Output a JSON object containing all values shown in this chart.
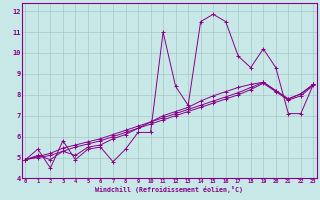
{
  "bg_color": "#c8e8e8",
  "grid_color": "#a8c8c8",
  "line_color": "#880088",
  "xlim": [
    -0.3,
    23.3
  ],
  "ylim": [
    4,
    12.4
  ],
  "xticks": [
    0,
    1,
    2,
    3,
    4,
    5,
    6,
    7,
    8,
    9,
    10,
    11,
    12,
    13,
    14,
    15,
    16,
    17,
    18,
    19,
    20,
    21,
    22,
    23
  ],
  "yticks": [
    4,
    5,
    6,
    7,
    8,
    9,
    10,
    11,
    12
  ],
  "xlabel": "Windchill (Refroidissement éolien,°C)",
  "series1_x": [
    0,
    1,
    2,
    3,
    4,
    5,
    6,
    7,
    8,
    9,
    10,
    11,
    12,
    13,
    14,
    15,
    16,
    17,
    18,
    19,
    20,
    21,
    22,
    23
  ],
  "series1_y": [
    4.9,
    5.4,
    4.5,
    5.8,
    4.9,
    5.4,
    5.5,
    4.8,
    5.4,
    6.2,
    6.2,
    11.0,
    8.4,
    7.5,
    11.5,
    11.85,
    11.5,
    9.85,
    9.3,
    10.2,
    9.3,
    7.1,
    7.1,
    8.5
  ],
  "series2_x": [
    0,
    1,
    2,
    3,
    4,
    5,
    6,
    7,
    8,
    9,
    10,
    11,
    12,
    13,
    14,
    15,
    16,
    17,
    18,
    19,
    20,
    21,
    22,
    23
  ],
  "series2_y": [
    4.9,
    5.1,
    4.9,
    5.3,
    5.1,
    5.5,
    5.6,
    5.9,
    6.1,
    6.4,
    6.7,
    7.0,
    7.2,
    7.4,
    7.7,
    7.95,
    8.15,
    8.35,
    8.5,
    8.6,
    8.2,
    7.8,
    8.05,
    8.5
  ],
  "series3_x": [
    0,
    1,
    2,
    3,
    4,
    5,
    6,
    7,
    8,
    9,
    10,
    11,
    12,
    13,
    14,
    15,
    16,
    17,
    18,
    19,
    20,
    21,
    22,
    23
  ],
  "series3_y": [
    4.9,
    5.05,
    5.2,
    5.45,
    5.6,
    5.75,
    5.9,
    6.1,
    6.3,
    6.5,
    6.7,
    6.9,
    7.1,
    7.3,
    7.5,
    7.7,
    7.9,
    8.1,
    8.35,
    8.6,
    8.2,
    7.8,
    8.05,
    8.5
  ],
  "series4_x": [
    0,
    1,
    2,
    3,
    4,
    5,
    6,
    7,
    8,
    9,
    10,
    11,
    12,
    13,
    14,
    15,
    16,
    17,
    18,
    19,
    20,
    21,
    22,
    23
  ],
  "series4_y": [
    4.9,
    5.0,
    5.1,
    5.3,
    5.5,
    5.65,
    5.8,
    6.0,
    6.2,
    6.4,
    6.6,
    6.8,
    7.0,
    7.2,
    7.4,
    7.6,
    7.8,
    8.0,
    8.25,
    8.55,
    8.15,
    7.75,
    7.95,
    8.45
  ]
}
